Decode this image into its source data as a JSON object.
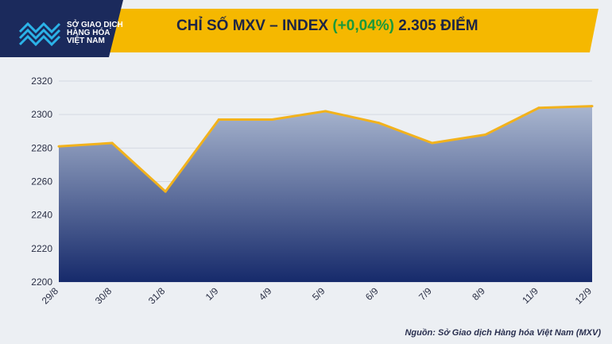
{
  "header": {
    "title_prefix": "CHỈ SỐ MXV – INDEX ",
    "title_change": "(+0,04%)",
    "title_suffix": " 2.305 ĐIỂM"
  },
  "logo": {
    "name_line1": "SỞ GIAO DỊCH",
    "name_line2": "HÀNG HÓA",
    "name_line3": "VIỆT NAM"
  },
  "footer": {
    "source": "Nguồn: Sở Giao dịch Hàng hóa Việt Nam (MXV)"
  },
  "colors": {
    "title_band": "#f5b800",
    "logo_bg": "#1b2a5c",
    "line": "#f2b21c",
    "area_top": "#a9b6cf",
    "area_bottom": "#162a6b",
    "change_positive": "#1a9a3a"
  },
  "chart_data": {
    "type": "area",
    "title": "CHỈ SỐ MXV – INDEX (+0,04%) 2.305 ĐIỂM",
    "categories": [
      "29/8",
      "30/8",
      "31/8",
      "1/9",
      "4/9",
      "5/9",
      "6/9",
      "7/9",
      "8/9",
      "11/9",
      "12/9"
    ],
    "series": [
      {
        "values": [
          2281,
          2283,
          2254,
          2297,
          2297,
          2302,
          2295,
          2283,
          2288,
          2304,
          2305
        ]
      }
    ],
    "yticks": [
      "2200",
      "2220",
      "2240",
      "2260",
      "2280",
      "2300",
      "2320"
    ],
    "ylim": [
      2200,
      2320
    ],
    "grid": true,
    "legend": "none"
  }
}
